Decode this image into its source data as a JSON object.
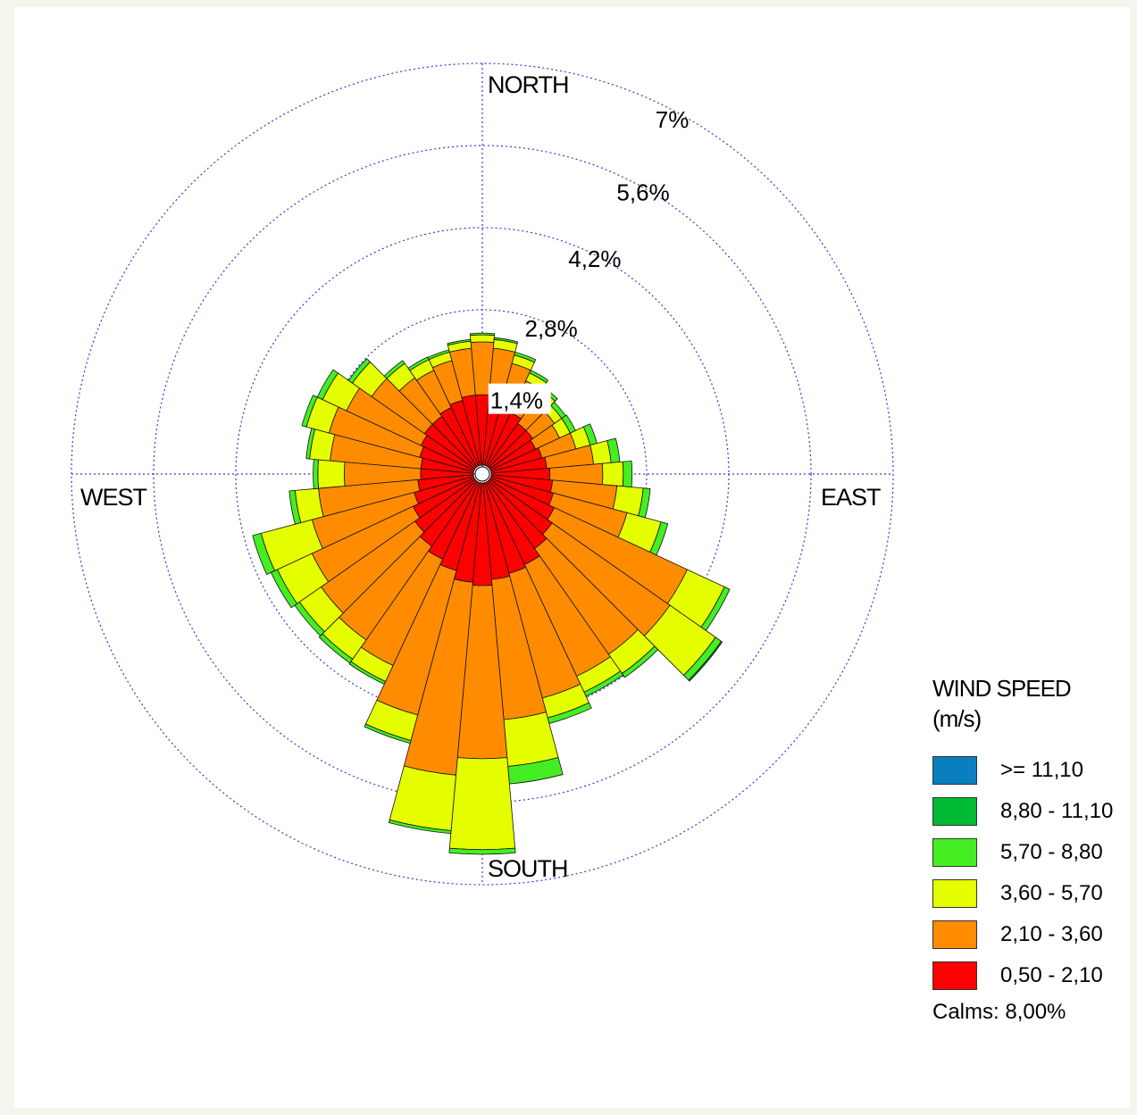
{
  "chart_data": {
    "type": "polar-bar",
    "directions_deg": [
      0,
      10,
      20,
      30,
      40,
      50,
      60,
      70,
      80,
      90,
      100,
      110,
      120,
      130,
      140,
      150,
      160,
      170,
      180,
      190,
      200,
      210,
      220,
      230,
      240,
      250,
      260,
      270,
      280,
      290,
      300,
      310,
      320,
      330,
      340,
      350
    ],
    "rings": [
      1.4,
      2.8,
      4.2,
      5.6,
      7
    ],
    "ring_labels": [
      "1,4%",
      "2,8%",
      "4,2%",
      "5,6%",
      "7%"
    ],
    "compass": {
      "north": "NORTH",
      "east": "EAST",
      "south": "SOUTH",
      "west": "WEST"
    },
    "series": [
      {
        "name": "0,50 - 2,10",
        "color": "#ff0000",
        "values": [
          1.2,
          1.15,
          1.05,
          1.0,
          0.9,
          0.9,
          0.85,
          0.9,
          0.95,
          1.0,
          1.05,
          1.1,
          1.2,
          1.3,
          1.4,
          1.55,
          1.6,
          1.65,
          1.75,
          1.7,
          1.55,
          1.45,
          1.35,
          1.25,
          1.15,
          1.05,
          0.95,
          0.9,
          0.9,
          0.95,
          1.0,
          1.05,
          1.05,
          1.1,
          1.15,
          1.2
        ]
      },
      {
        "name": "2,10 - 3,60",
        "color": "#ff8c00",
        "values": [
          0.9,
          0.85,
          0.75,
          0.6,
          0.55,
          0.45,
          0.45,
          0.6,
          0.8,
          0.9,
          1.1,
          1.3,
          2.5,
          2.45,
          2.2,
          2.1,
          2.2,
          2.4,
          2.95,
          3.3,
          2.55,
          2.0,
          1.95,
          1.95,
          1.9,
          1.8,
          1.7,
          1.3,
          1.55,
          1.6,
          1.4,
          1.1,
          0.8,
          0.7,
          0.7,
          0.8
        ]
      },
      {
        "name": "3,60 - 5,70",
        "color": "#e5ff00",
        "values": [
          0.12,
          0.15,
          0.15,
          0.15,
          0.15,
          0.15,
          0.2,
          0.25,
          0.3,
          0.35,
          0.45,
          0.6,
          0.7,
          0.95,
          0.4,
          0.3,
          0.35,
          0.8,
          1.55,
          0.95,
          0.45,
          0.3,
          0.4,
          0.45,
          0.65,
          0.9,
          0.4,
          0.45,
          0.35,
          0.4,
          0.45,
          0.4,
          0.3,
          0.2,
          0.15,
          0.12
        ]
      },
      {
        "name": "5,70 - 8,80",
        "color": "#44ee22",
        "values": [
          0.03,
          0.03,
          0.05,
          0.05,
          0.06,
          0.08,
          0.1,
          0.12,
          0.15,
          0.15,
          0.12,
          0.12,
          0.1,
          0.12,
          0.08,
          0.08,
          0.1,
          0.3,
          0.08,
          0.05,
          0.05,
          0.05,
          0.08,
          0.1,
          0.12,
          0.15,
          0.1,
          0.08,
          0.06,
          0.08,
          0.1,
          0.08,
          0.06,
          0.05,
          0.04,
          0.03
        ]
      },
      {
        "name": "8,80 - 11,10",
        "color": "#00bb33",
        "values": [
          0,
          0,
          0,
          0,
          0,
          0,
          0,
          0,
          0,
          0,
          0,
          0,
          0,
          0.02,
          0,
          0,
          0,
          0,
          0,
          0,
          0,
          0,
          0,
          0,
          0,
          0,
          0,
          0,
          0,
          0,
          0,
          0,
          0,
          0,
          0,
          0
        ]
      },
      {
        "name": ">= 11,10",
        "color": "#0a7fbf",
        "values": [
          0,
          0,
          0,
          0,
          0,
          0,
          0,
          0,
          0,
          0,
          0,
          0,
          0,
          0,
          0,
          0,
          0,
          0,
          0,
          0,
          0,
          0,
          0,
          0,
          0,
          0,
          0,
          0,
          0,
          0,
          0,
          0,
          0,
          0,
          0,
          0,
          0
        ]
      }
    ],
    "legend_title_line1": "WIND SPEED",
    "legend_title_line2": "(m/s)",
    "calms": "Calms: 8,00%",
    "grid": true,
    "legend_position": "bottom-right"
  }
}
